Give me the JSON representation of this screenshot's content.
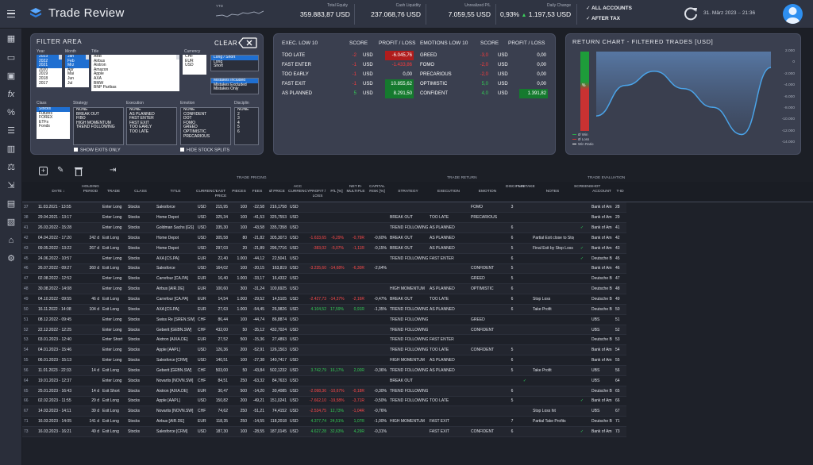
{
  "app": {
    "title": "Trade Review"
  },
  "header": {
    "ytd_label": "YTD",
    "total_equity": {
      "label": "Total Equity",
      "value": "359.883,87 USD"
    },
    "cash_liquidity": {
      "label": "Cash Liquidity",
      "value": "237.068,76 USD"
    },
    "unrealized_pl": {
      "label": "Unrealized P/L",
      "value": "7.059,55 USD"
    },
    "daily_change": {
      "label": "Daily Change",
      "pct": "0,93%",
      "arrow": "▲",
      "value": "1.197,53 USD"
    },
    "account_filter": "ALL ACCOUNTS",
    "tax_filter": "AFTER TAX",
    "date": "31. März 2023",
    "time": "21:36"
  },
  "filter": {
    "title": "FILTER AREA",
    "clear_label": "CLEAR",
    "year_label": "Year",
    "month_label": "Month",
    "title_label": "Title",
    "currency_label": "Currency",
    "years": [
      "2023",
      "2022",
      "2021",
      "2020",
      "2019",
      "2018",
      "2017"
    ],
    "months": [
      "Jan",
      "Feb",
      "Mrz",
      "Apr",
      "Mai",
      "Jun",
      "Jul"
    ],
    "titles": [
      "ABB",
      "Airbus",
      "Aixtron",
      "Amazon",
      "Apple",
      "AXA",
      "BMW",
      "BNP Paribas"
    ],
    "currencies": [
      "CHF",
      "EUR",
      "USD"
    ],
    "long_short": [
      "Long / Short",
      "Long",
      "Short"
    ],
    "mistakes": [
      "Mistakes Included",
      "Mistakes Excluded",
      "Mistakes Only"
    ],
    "class_label": "Class",
    "strategy_label": "Strategy",
    "execution_label": "Execution",
    "emotion_label": "Emotion",
    "discipline_label": "Disciplin",
    "classes": [
      "Stocks",
      "Futures",
      "FOREX",
      "ETFs",
      "Fonds"
    ],
    "strategies": [
      "NONE",
      "BREAK OUT",
      "FIBO",
      "HIGH MOMENTUM",
      "TREND FOLLOWING"
    ],
    "executions": [
      "NONE",
      "AS PLANNED",
      "FAST ENTER",
      "FAST EXIT",
      "TOO EARLY",
      "TOO LATE"
    ],
    "emotions": [
      "NONE",
      "CONFIDENT",
      "DOT",
      "FOMO",
      "GREED",
      "OPTIMISTIC",
      "PRECARIOUS"
    ],
    "disciplines": [
      "NONE",
      "2",
      "3",
      "4",
      "5",
      "6"
    ],
    "show_exits": "SHOW EXITS ONLY",
    "hide_splits": "HIDE STOCK SPLITS"
  },
  "exec": {
    "title": "EXEC. LOW 10",
    "score_h": "SCORE",
    "pl_h": "PROFIT / LOSS",
    "rows": [
      {
        "name": "TOO LATE",
        "score": "-2",
        "cur": "USD",
        "pl": "-6.045,76"
      },
      {
        "name": "FAST ENTER",
        "score": "-1",
        "cur": "USD",
        "pl": "-1.433,86"
      },
      {
        "name": "TOO EARLY",
        "score": "-1",
        "cur": "USD",
        "pl": "0,00"
      },
      {
        "name": "FAST EXIT",
        "score": "-1",
        "cur": "USD",
        "pl": "10.855,62"
      },
      {
        "name": "AS PLANNED",
        "score": "5",
        "cur": "USD",
        "pl": "8.291,50"
      }
    ]
  },
  "emotions": {
    "title": "EMOTIONS LOW 10",
    "score_h": "SCORE",
    "pl_h": "PROFIT / LOSS",
    "rows": [
      {
        "name": "GREED",
        "score": "-3,0",
        "cur": "USD",
        "pl": "0,00"
      },
      {
        "name": "FOMO",
        "score": "-2,0",
        "cur": "USD",
        "pl": "0,00"
      },
      {
        "name": "PRECARIOUS",
        "score": "-2,0",
        "cur": "USD",
        "pl": "0,00"
      },
      {
        "name": "OPTIMISTIC",
        "score": "5,0",
        "cur": "USD",
        "pl": "0,00"
      },
      {
        "name": "CONFIDENT",
        "score": "4,0",
        "cur": "USD",
        "pl": "1.391,82"
      }
    ]
  },
  "return_chart": {
    "title": "RETURN CHART - FILTERED TRADES [USD]",
    "gauge_label": "%",
    "legend": [
      "Ø Win",
      "Ø Loss",
      "Win Ratio"
    ],
    "y_ticks": [
      "2.000",
      "0",
      "-2.000",
      "-4.000",
      "-6.000",
      "-8.000",
      "-10.000",
      "-12.000",
      "-14.000"
    ]
  },
  "chart_data": {
    "type": "area",
    "title": "RETURN CHART - FILTERED TRADES [USD]",
    "ylim": [
      -14000,
      2000
    ],
    "x": [
      1,
      2,
      3,
      4,
      5,
      6,
      7
    ],
    "values": [
      -9800,
      -4200,
      -1600,
      -4800,
      -8200,
      -13200,
      -900
    ]
  },
  "toolbar": {
    "add": "add",
    "edit": "edit",
    "delete": "delete",
    "export": "export"
  },
  "grid": {
    "group_pricing": "TRADE PRICING",
    "group_return": "TRADE RETURN",
    "group_eval": "TRADE EVALUATION",
    "columns": [
      "DATE ↓",
      "HOLDING PERIOD",
      "TRADE",
      "CLASS",
      "TITLE",
      "CURRENCY",
      "LAST PRICE",
      "PIECES",
      "FEES",
      "Ø PRICE",
      "ACC CURRENCY",
      "PROFIT / LOSS",
      "P/L [%]",
      "NET R-MULTIPLE",
      "CAPITAL RISK [%]",
      "STRATEGY",
      "EXECUTION",
      "EMOTION",
      "DISCIPLIN",
      "MISTAKE",
      "NOTES",
      "SCREENSHOT",
      "ACCOUNT",
      "T-ID"
    ],
    "rows": [
      [
        "37",
        "11.03.2021 - 13:55",
        "",
        "Enter Long",
        "Stocks",
        "Salesforce",
        "USD",
        "215,95",
        "100",
        "-22,58",
        "216,1758",
        "USD",
        "",
        "",
        "",
        "",
        "",
        "",
        "FOMO",
        "3",
        "",
        "",
        "",
        "Bank of Am",
        "28"
      ],
      [
        "38",
        "29.04.2021 - 13:17",
        "",
        "Enter Long",
        "Stocks",
        "Home Depot",
        "USD",
        "325,34",
        "100",
        "-41,53",
        "325,7553",
        "USD",
        "",
        "",
        "",
        "",
        "BREAK OUT",
        "TOO LATE",
        "PRECARIOUS",
        "",
        "",
        "",
        "",
        "Bank of Am",
        "29"
      ],
      [
        "41",
        "26.03.2022 - 15:28",
        "",
        "Enter Long",
        "Stocks",
        "Goldman Sachs [GS]",
        "USD",
        "335,30",
        "100",
        "-43,58",
        "335,7358",
        "USD",
        "",
        "",
        "",
        "",
        "TREND FOLLOWING",
        "AS PLANNED",
        "",
        "6",
        "",
        "",
        "✓",
        "Bank of Am",
        "41"
      ],
      [
        "42",
        "04.04.2022 - 17:20",
        "242 d",
        "Exit Long",
        "Stocks",
        "Home Depot",
        "USD",
        "305,58",
        "80",
        "-21,82",
        "305,3073",
        "USD",
        "-1.633,65",
        "-6,29%",
        "-0,79R",
        "-0,60%",
        "BREAK OUT",
        "AS PLANNED",
        "",
        "6",
        "",
        "Partial Exit close to Stop Loss",
        "",
        "Bank of Am",
        "42"
      ],
      [
        "43",
        "09.05.2022 - 13:22",
        "267 d",
        "Exit Long",
        "Stocks",
        "Home Depot",
        "USD",
        "297,03",
        "20",
        "-21,89",
        "296,7716",
        "USD",
        "-383,02",
        "-5,07%",
        "-1,11R",
        "-0,15%",
        "BREAK OUT",
        "AS PLANNED",
        "",
        "5",
        "",
        "Final Exit by Stop Loss",
        "✓",
        "Bank of Am",
        "43"
      ],
      [
        "45",
        "24.06.2022 - 10:57",
        "",
        "Enter Long",
        "Stocks",
        "AXA [CS.PA]",
        "EUR",
        "22,40",
        "1.000",
        "-44,12",
        "22,5041",
        "USD",
        "",
        "",
        "",
        "",
        "TREND FOLLOWING",
        "FAST ENTER",
        "",
        "6",
        "",
        "",
        "✓",
        "Deutsche B",
        "45"
      ],
      [
        "46",
        "26.07.2022 - 09:27",
        "360 d",
        "Exit Long",
        "Stocks",
        "Salesforce",
        "USD",
        "164,02",
        "100",
        "-20,15",
        "163,819",
        "USD",
        "-3.235,60",
        "-14,68%",
        "-6,30R",
        "-2,64%",
        "",
        "",
        "CONFIDENT",
        "5",
        "",
        "",
        "",
        "Bank of Am",
        "46"
      ],
      [
        "47",
        "02.08.2022 - 12:52",
        "",
        "Enter Long",
        "Stocks",
        "Carrefour [CA.PA]",
        "EUR",
        "16,40",
        "1.000",
        "-33,17",
        "16,4332",
        "USD",
        "",
        "",
        "",
        "",
        "",
        "",
        "GREED",
        "5",
        "",
        "",
        "",
        "Deutsche B",
        "47"
      ],
      [
        "48",
        "30.08.2022 - 14:08",
        "",
        "Enter Long",
        "Stocks",
        "Airbus [AIR.DE]",
        "EUR",
        "100,60",
        "300",
        "-31,24",
        "100,6925",
        "USD",
        "",
        "",
        "",
        "",
        "HIGH MOMENTUM",
        "AS PLANNED",
        "OPTIMISTIC",
        "6",
        "",
        "",
        "",
        "Deutsche B",
        "48"
      ],
      [
        "49",
        "04.10.2022 - 09:55",
        "46 d",
        "Exit Long",
        "Stocks",
        "Carrefour [CA.PA]",
        "EUR",
        "14,54",
        "1.000",
        "-29,52",
        "14,5105",
        "USD",
        "-2.427,73",
        "-14,37%",
        "-2,16R",
        "-0,47%",
        "BREAK OUT",
        "TOO LATE",
        "",
        "6",
        "",
        "Stop Loss",
        "",
        "Deutsche B",
        "49"
      ],
      [
        "50",
        "16.11.2022 - 14:08",
        "104 d",
        "Exit Long",
        "Stocks",
        "AXA [CS.PA]",
        "EUR",
        "27,63",
        "1.000",
        "-54,45",
        "26,9826",
        "USD",
        "4.104,52",
        "17,59%",
        "0,91R",
        "-1,35%",
        "TREND FOLLOWING",
        "AS PLANNED",
        "",
        "6",
        "",
        "Take Profit",
        "",
        "Deutsche B",
        "50"
      ],
      [
        "51",
        "08.12.2022 - 09:45",
        "",
        "Enter Long",
        "Stocks",
        "Swiss Re [SREN.SW]",
        "CHF",
        "86,44",
        "100",
        "-44,74",
        "86,8874",
        "USD",
        "",
        "",
        "",
        "",
        "TREND FOLLOWING",
        "",
        "GREED",
        "",
        "",
        "",
        "",
        "UBS",
        "51"
      ],
      [
        "52",
        "22.12.2022 - 12:25",
        "",
        "Enter Long",
        "Stocks",
        "Geberit [GEBN.SW]",
        "CHF",
        "432,00",
        "50",
        "-35,12",
        "432,7024",
        "USD",
        "",
        "",
        "",
        "",
        "TREND FOLLOWING",
        "",
        "CONFIDENT",
        "",
        "",
        "",
        "",
        "UBS",
        "52"
      ],
      [
        "53",
        "03.01.2023 - 12:40",
        "",
        "Enter Short",
        "Stocks",
        "Aixtron [AIXA.DE]",
        "EUR",
        "27,52",
        "500",
        "-15,36",
        "27,4893",
        "USD",
        "",
        "",
        "",
        "",
        "TREND FOLLOWING",
        "FAST ENTER",
        "",
        "",
        "",
        "",
        "",
        "Deutsche B",
        "53"
      ],
      [
        "54",
        "04.01.2023 - 15:46",
        "",
        "Enter Long",
        "Stocks",
        "Apple [AAPL]",
        "USD",
        "126,36",
        "200",
        "-52,91",
        "126,1503",
        "USD",
        "",
        "",
        "",
        "",
        "TREND FOLLOWING",
        "TOO LATE",
        "CONFIDENT",
        "5",
        "",
        "",
        "",
        "Bank of Am",
        "54"
      ],
      [
        "55",
        "06.01.2023 - 15:13",
        "",
        "Enter Long",
        "Stocks",
        "Salesforce [CRM]",
        "USD",
        "140,51",
        "100",
        "-27,38",
        "140,7417",
        "USD",
        "",
        "",
        "",
        "",
        "HIGH MOMENTUM",
        "AS PLANNED",
        "",
        "6",
        "",
        "",
        "",
        "Bank of Am",
        "55"
      ],
      [
        "56",
        "11.01.2023 - 22:33",
        "14 d",
        "Exit Long",
        "Stocks",
        "Geberit [GEBN.SW]",
        "CHF",
        "503,00",
        "50",
        "-43,84",
        "502,1232",
        "USD",
        "3.742,79",
        "16,17%",
        "2,00R",
        "-0,36%",
        "TREND FOLLOWING",
        "AS PLANNED",
        "",
        "5",
        "",
        "Take Profit",
        "",
        "UBS",
        "56"
      ],
      [
        "64",
        "19.01.2023 - 12:37",
        "",
        "Enter Long",
        "Stocks",
        "Novartis [NOVN.SW]",
        "CHF",
        "84,51",
        "250",
        "-63,32",
        "84,7633",
        "USD",
        "",
        "",
        "",
        "",
        "BREAK OUT",
        "",
        "",
        "",
        "✓",
        "",
        "",
        "UBS",
        "64"
      ],
      [
        "65",
        "25.01.2023 - 16:43",
        "14 d",
        "Exit Short",
        "Stocks",
        "Aixtron [AIXA.DE]",
        "EUR",
        "30,47",
        "500",
        "-14,20",
        "30,4085",
        "USD",
        "-2.098,36",
        "-10,67%",
        "-0,18R",
        "-0,30%",
        "TREND FOLLOWING",
        "",
        "",
        "6",
        "",
        "",
        "",
        "Deutsche B",
        "65"
      ],
      [
        "66",
        "02.02.2023 - 11:55",
        "29 d",
        "Exit Long",
        "Stocks",
        "Apple [AAPL]",
        "USD",
        "150,82",
        "200",
        "-49,21",
        "151,0241",
        "USD",
        "-7.662,10",
        "-19,58%",
        "-3,71R",
        "-0,50%",
        "TREND FOLLOWING",
        "TOO LATE",
        "",
        "5",
        "",
        "",
        "✓",
        "Bank of Am",
        "66"
      ],
      [
        "67",
        "14.03.2023 - 14:11",
        "39 d",
        "Exit Long",
        "Stocks",
        "Novartis [NOVN.SW]",
        "CHF",
        "74,62",
        "250",
        "-51,21",
        "74,4152",
        "USD",
        "-2.534,75",
        "12,73%",
        "-1,04R",
        "-0,76%",
        "",
        "",
        "",
        "",
        "",
        "Stop Loss hit",
        "",
        "UBS",
        "67"
      ],
      [
        "71",
        "16.03.2023 - 14:05",
        "141 d",
        "Exit Long",
        "Stocks",
        "Airbus [AIR.DE]",
        "EUR",
        "118,35",
        "250",
        "-14,55",
        "118,2018",
        "USD",
        "4.377,74",
        "24,51%",
        "1,07R",
        "-1,00%",
        "HIGH MOMENTUM",
        "FAST EXIT",
        "",
        "7",
        "",
        "Partial Take Profits",
        "",
        "Deutsche B",
        "71"
      ],
      [
        "73",
        "16.03.2023 - 16:21",
        "49 d",
        "Exit Long",
        "Stocks",
        "Salesforce [CRM]",
        "USD",
        "187,30",
        "100",
        "-28,55",
        "187,0145",
        "USD",
        "4.627,28",
        "32,63%",
        "4,29R",
        "-0,31%",
        "",
        "FAST EXIT",
        "CONFIDENT",
        "6",
        "",
        "",
        "✓",
        "Bank of Am",
        "73"
      ]
    ]
  }
}
